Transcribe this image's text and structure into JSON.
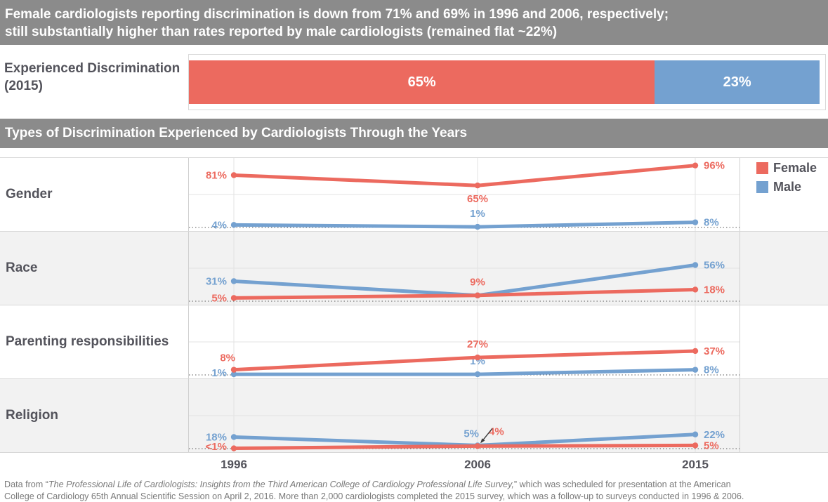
{
  "headline": {
    "line1": "Female cardiologists reporting discrimination is down from 71% and 69% in 1996 and 2006, respectively;",
    "line2": "still substantially higher than rates reported by male cardiologists (remained flat ~22%)"
  },
  "section_title": "Types of Discrimination Experienced by Cardiologists Through the Years",
  "colors": {
    "female": "#EC6A5F",
    "male": "#74A1D0",
    "header_bg": "#8B8B8B",
    "label_text": "#53535B",
    "footer_text": "#7A7A7A",
    "annotation_arrow": "#3A3A3A"
  },
  "legend": {
    "items": [
      {
        "label": "Female",
        "color_key": "female"
      },
      {
        "label": "Male",
        "color_key": "male"
      }
    ]
  },
  "x_axis": {
    "labels": [
      "1996",
      "2006",
      "2015"
    ]
  },
  "chart_data": [
    {
      "type": "bar",
      "title": "Experienced Discrimination (2015)",
      "row_label_line1": "Experienced Discrimination",
      "row_label_line2": "(2015)",
      "unit": "%",
      "series": [
        {
          "name": "Female",
          "value": 65,
          "label": "65%"
        },
        {
          "name": "Male",
          "value": 23,
          "label": "23%"
        }
      ]
    },
    {
      "type": "line",
      "title": "Types of Discrimination Experienced by Cardiologists Through the Years",
      "x": [
        "1996",
        "2006",
        "2015"
      ],
      "ylim": [
        0,
        105
      ],
      "unit": "%",
      "legend_position": "top-right",
      "panels": [
        {
          "id": "gender",
          "label": "Gender",
          "series": [
            {
              "name": "Male",
              "values": [
                4,
                1,
                8
              ],
              "labels": [
                "4%",
                "1%",
                "8%"
              ],
              "label_pos": [
                "left",
                "above",
                "right"
              ]
            },
            {
              "name": "Female",
              "values": [
                81,
                65,
                96
              ],
              "labels": [
                "81%",
                "65%",
                "96%"
              ],
              "label_pos": [
                "left",
                "below",
                "right"
              ]
            }
          ]
        },
        {
          "id": "race",
          "label": "Race",
          "series": [
            {
              "name": "Male",
              "values": [
                31,
                9,
                56
              ],
              "labels": [
                "31%",
                "",
                "56%"
              ],
              "label_pos": [
                "left",
                "none",
                "right"
              ]
            },
            {
              "name": "Female",
              "values": [
                5,
                9,
                18
              ],
              "labels": [
                "5%",
                "9%",
                "18%"
              ],
              "label_pos": [
                "left",
                "above",
                "right"
              ]
            }
          ]
        },
        {
          "id": "parenting",
          "label": "Parenting responsibilities",
          "series": [
            {
              "name": "Male",
              "values": [
                1,
                1,
                8
              ],
              "labels": [
                "1%",
                "1%",
                "8%"
              ],
              "label_pos": [
                "left",
                "above",
                "right"
              ]
            },
            {
              "name": "Female",
              "values": [
                8,
                27,
                37
              ],
              "labels": [
                "8%",
                "27%",
                "37%"
              ],
              "label_pos": [
                "above-left",
                "above",
                "right"
              ]
            }
          ]
        },
        {
          "id": "religion",
          "label": "Religion",
          "series": [
            {
              "name": "Male",
              "values": [
                18,
                5,
                22
              ],
              "labels": [
                "18%",
                "5%",
                "22%"
              ],
              "label_pos": [
                "left",
                "above-left",
                "right"
              ]
            },
            {
              "name": "Female",
              "values": [
                0.5,
                4,
                5
              ],
              "labels": [
                "<1%",
                "4%",
                "5%"
              ],
              "label_pos": [
                "left",
                "above-right",
                "right"
              ],
              "annotation_arrow_index": 1
            }
          ]
        }
      ]
    }
  ],
  "footer": {
    "prefix": "Data from “",
    "italic": "The Professional Life of Cardiologists: Insights from the Third American College of Cardiology Professional Life Survey,",
    "rest_line1": "” which was scheduled for presentation at the American",
    "rest_line2": "College of Cardiology 65th Annual Scientific Session on April 2, 2016. More than 2,000 cardiologists completed the 2015 survey, which was a follow-up to surveys conducted in 1996 & 2006."
  }
}
